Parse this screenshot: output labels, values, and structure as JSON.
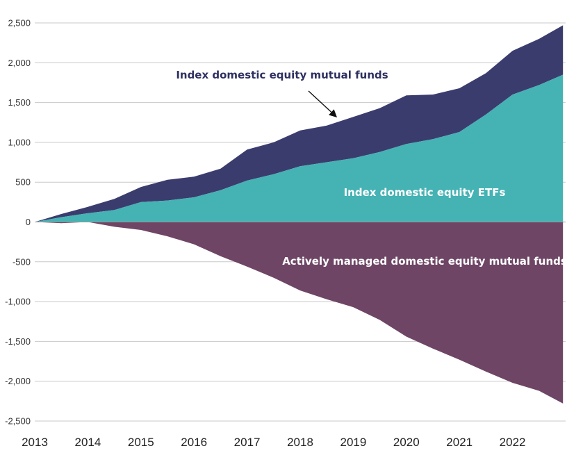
{
  "chart_data": {
    "type": "area",
    "title": "",
    "xlabel": "",
    "ylabel": "",
    "x_ticks": [
      "2013",
      "2014",
      "2015",
      "2016",
      "2017",
      "2018",
      "2019",
      "2020",
      "2021",
      "2022"
    ],
    "y_ticks": [
      "2,500",
      "2,000",
      "1,500",
      "1,000",
      "500",
      "0",
      "-500",
      "-1,000",
      "-1,500",
      "-2,000",
      "-2,500"
    ],
    "y_tick_values": [
      2500,
      2000,
      1500,
      1000,
      500,
      0,
      -500,
      -1000,
      -1500,
      -2000,
      -2500
    ],
    "xlim": [
      2013.0,
      2023.0
    ],
    "ylim": [
      -2500,
      2500
    ],
    "grid": true,
    "stacking": "Index domestic equity mutual funds stacked above Index domestic equity ETFs; actively managed funds plotted below zero",
    "x": [
      2013.0,
      2013.5,
      2014.0,
      2014.5,
      2015.0,
      2015.5,
      2016.0,
      2016.5,
      2017.0,
      2017.5,
      2018.0,
      2018.5,
      2019.0,
      2019.5,
      2020.0,
      2020.5,
      2021.0,
      2021.5,
      2022.0,
      2022.5,
      2022.95
    ],
    "series": [
      {
        "name": "Index domestic equity ETFs",
        "color": "#45b2b4",
        "values": [
          0,
          60,
          110,
          150,
          250,
          270,
          310,
          400,
          520,
          600,
          700,
          750,
          800,
          880,
          980,
          1040,
          1130,
          1350,
          1600,
          1720,
          1850
        ]
      },
      {
        "name": "Index domestic equity mutual funds",
        "color": "#3b3c6e",
        "values": [
          0,
          40,
          80,
          140,
          190,
          260,
          260,
          270,
          390,
          400,
          450,
          460,
          520,
          550,
          610,
          560,
          550,
          520,
          550,
          580,
          620
        ]
      },
      {
        "name": "Actively managed domestic equity mutual funds",
        "color": "#6e4565",
        "values": [
          0,
          -15,
          0,
          -60,
          -100,
          -180,
          -280,
          -430,
          -560,
          -700,
          -860,
          -970,
          -1070,
          -1230,
          -1440,
          -1590,
          -1730,
          -1880,
          -2020,
          -2120,
          -2280
        ]
      }
    ],
    "annotations": [
      {
        "text": "Index domestic equity mutual funds",
        "color": "#2e3060",
        "arrow": true
      },
      {
        "text": "Index domestic equity ETFs",
        "color": "#ffffff"
      },
      {
        "text": "Actively managed domestic equity mutual funds",
        "color": "#ffffff"
      }
    ],
    "gridline_color": "#c8c8c8"
  }
}
